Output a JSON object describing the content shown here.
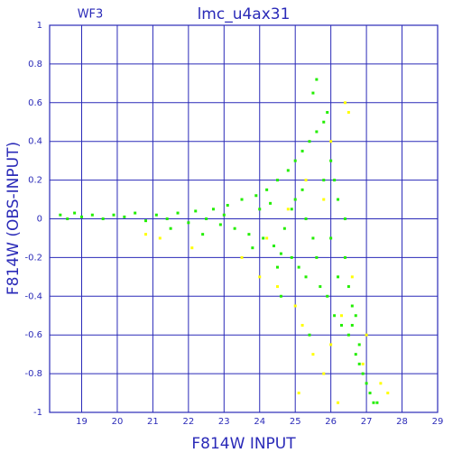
{
  "chart_data": {
    "type": "scatter",
    "title": "lmc_u4ax31",
    "annotation": "WF3",
    "x_label": "F814W INPUT",
    "y_label": "F814W (OBS-INPUT)",
    "xlim": [
      18.1,
      29
    ],
    "ylim": [
      -1,
      1
    ],
    "xticks": [
      19,
      20,
      21,
      22,
      23,
      24,
      25,
      26,
      27,
      28,
      29
    ],
    "yticks": [
      -1,
      -0.8,
      -0.6,
      -0.4,
      -0.2,
      0,
      0.2,
      0.4,
      0.6,
      0.8,
      1
    ],
    "grid": true,
    "axis_color": "#2a2ab8",
    "series": [
      {
        "color": "#22ee00",
        "x": [
          18.4,
          18.6,
          18.8,
          19.0,
          19.3,
          19.6,
          19.9,
          20.2,
          20.5,
          20.8,
          21.1,
          21.4,
          21.7,
          22.0,
          22.2,
          22.5,
          22.7,
          22.9,
          23.1,
          23.3,
          23.5,
          23.7,
          23.9,
          24.1,
          24.2,
          24.4,
          24.5,
          24.6,
          24.8,
          24.9,
          25.0,
          25.1,
          25.2,
          25.3,
          25.4,
          25.5,
          25.6,
          25.7,
          25.8,
          25.9,
          26.0,
          26.1,
          26.2,
          26.3,
          26.4,
          26.5,
          26.6,
          26.7,
          26.8,
          26.9,
          27.0,
          27.1,
          27.2,
          25.5,
          25.6,
          25.0,
          25.3,
          24.0,
          23.0,
          25.8,
          26.0,
          25.6,
          26.2,
          24.7,
          24.3,
          22.4,
          21.5,
          25.4,
          24.6,
          26.4,
          26.5,
          26.6,
          25.9,
          26.1,
          25.2,
          24.9,
          24.5,
          23.8,
          26.7,
          26.8,
          27.3
        ],
        "y": [
          0.02,
          0.0,
          0.03,
          0.01,
          0.02,
          0.0,
          0.02,
          0.01,
          0.03,
          -0.01,
          0.02,
          0.0,
          0.03,
          -0.02,
          0.04,
          0.0,
          0.05,
          -0.03,
          0.07,
          -0.05,
          0.1,
          -0.08,
          0.12,
          -0.1,
          0.15,
          -0.14,
          0.2,
          -0.18,
          0.25,
          -0.2,
          0.3,
          -0.25,
          0.35,
          -0.3,
          0.4,
          -0.1,
          0.45,
          -0.35,
          0.5,
          -0.4,
          0.3,
          -0.5,
          0.1,
          -0.55,
          -0.2,
          -0.6,
          -0.45,
          -0.7,
          -0.65,
          -0.8,
          -0.85,
          -0.9,
          -0.95,
          0.65,
          0.72,
          0.1,
          0.0,
          0.05,
          0.02,
          0.2,
          -0.1,
          -0.2,
          -0.3,
          -0.05,
          0.08,
          -0.08,
          -0.05,
          -0.6,
          -0.4,
          0.0,
          -0.35,
          -0.55,
          0.55,
          0.2,
          0.15,
          0.05,
          -0.25,
          -0.15,
          -0.5,
          -0.75,
          -0.95
        ]
      },
      {
        "color": "#ffff00",
        "x": [
          22.1,
          23.5,
          24.0,
          24.5,
          25.0,
          25.2,
          25.5,
          25.8,
          26.0,
          26.3,
          26.6,
          26.9,
          27.4,
          27.6,
          26.0,
          26.4,
          25.8,
          25.3,
          24.8,
          24.2,
          21.2,
          20.8,
          25.1,
          26.2,
          27.0,
          26.5
        ],
        "y": [
          -0.15,
          -0.2,
          -0.3,
          -0.35,
          -0.45,
          -0.55,
          -0.7,
          -0.8,
          -0.65,
          -0.5,
          -0.3,
          -0.75,
          -0.85,
          -0.9,
          0.4,
          0.6,
          0.1,
          0.2,
          0.05,
          -0.1,
          -0.1,
          -0.08,
          -0.9,
          -0.95,
          -0.6,
          0.55
        ]
      }
    ]
  }
}
